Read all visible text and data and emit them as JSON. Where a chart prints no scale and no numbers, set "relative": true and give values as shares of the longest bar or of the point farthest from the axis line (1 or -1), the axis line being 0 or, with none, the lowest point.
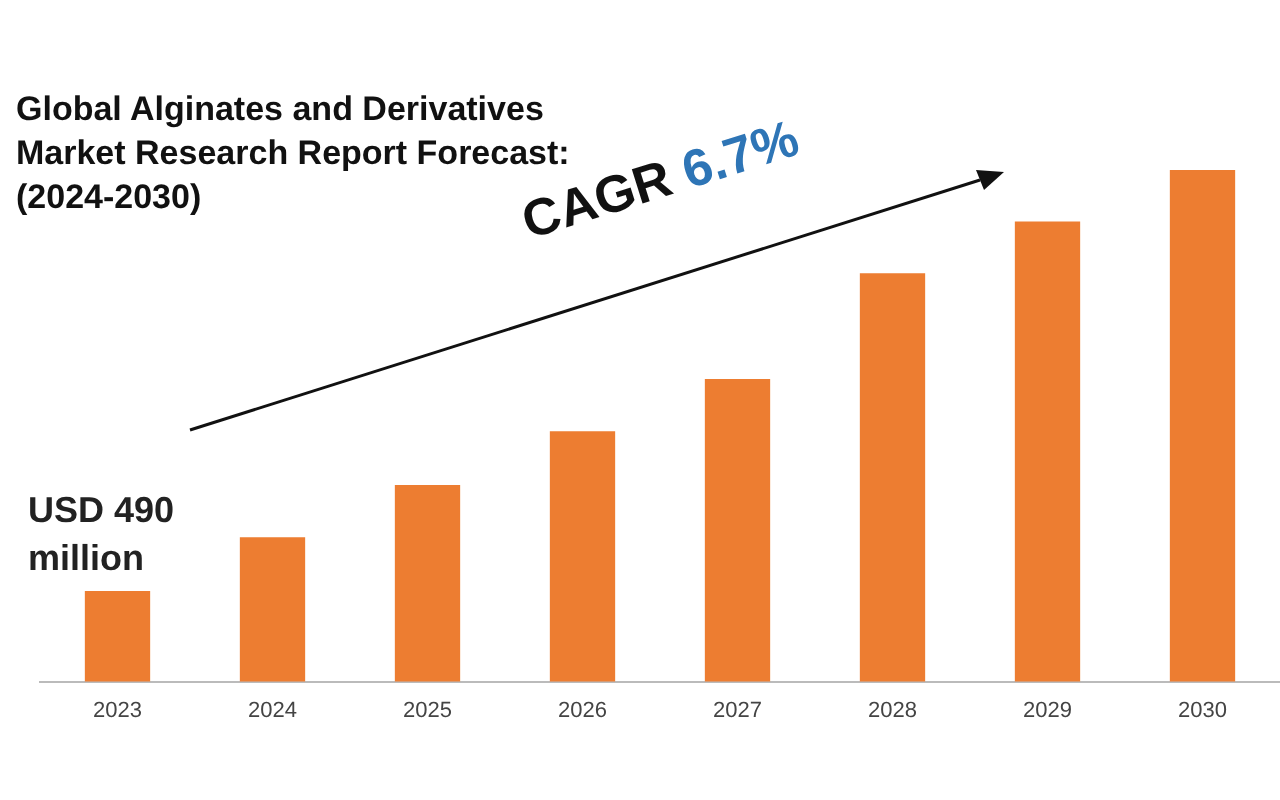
{
  "chart_data": {
    "type": "bar",
    "title": "Global Alginates and Derivatives Market Research Report Forecast: (2024-2030)",
    "categories": [
      "2023",
      "2024",
      "2025",
      "2026",
      "2027",
      "2028",
      "2029",
      "2030"
    ],
    "values": [
      0.176,
      0.281,
      0.383,
      0.488,
      0.59,
      0.797,
      0.898,
      1
    ],
    "color": "#ed7d31",
    "relative": true,
    "grid": false,
    "legend": false,
    "annotations": [
      "USD 490 million",
      "CAGR 6.7%"
    ]
  }
}
